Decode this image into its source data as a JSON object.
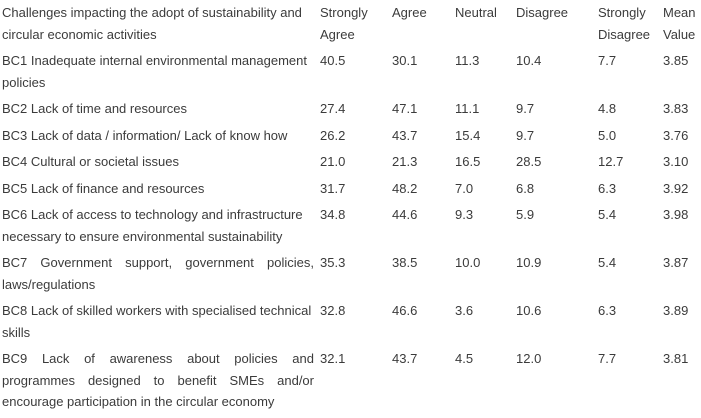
{
  "table": {
    "header": {
      "challenge_label": "Challenges impacting the adopt of sustainability and circular economic activities",
      "columns": [
        "Strongly Agree",
        "Agree",
        "Neutral",
        "Disagree",
        "Strongly Disagree",
        "Mean Value"
      ]
    },
    "rows": [
      {
        "challenge": "BC1 Inadequate internal environmental management policies",
        "strongly_agree": "40.5",
        "agree": "30.1",
        "neutral": "11.3",
        "disagree": "10.4",
        "strongly_disagree": "7.7",
        "mean_value": "3.85"
      },
      {
        "challenge": "BC2 Lack of time and resources",
        "strongly_agree": "27.4",
        "agree": "47.1",
        "neutral": "11.1",
        "disagree": "9.7",
        "strongly_disagree": "4.8",
        "mean_value": "3.83"
      },
      {
        "challenge": "BC3 Lack of data / information/ Lack of know how",
        "strongly_agree": "26.2",
        "agree": "43.7",
        "neutral": "15.4",
        "disagree": "9.7",
        "strongly_disagree": "5.0",
        "mean_value": "3.76"
      },
      {
        "challenge": "BC4 Cultural or societal issues",
        "strongly_agree": "21.0",
        "agree": "21.3",
        "neutral": "16.5",
        "disagree": "28.5",
        "strongly_disagree": "12.7",
        "mean_value": "3.10"
      },
      {
        "challenge": "BC5 Lack of finance and resources",
        "strongly_agree": "31.7",
        "agree": "48.2",
        "neutral": "7.0",
        "disagree": "6.8",
        "strongly_disagree": "6.3",
        "mean_value": "3.92"
      },
      {
        "challenge": "BC6 Lack of access to technology and infrastructure necessary to ensure environmental sustainability",
        "strongly_agree": "34.8",
        "agree": "44.6",
        "neutral": "9.3",
        "disagree": "5.9",
        "strongly_disagree": "5.4",
        "mean_value": "3.98"
      },
      {
        "challenge": "BC7 Government support, government policies, laws/regulations",
        "strongly_agree": "35.3",
        "agree": "38.5",
        "neutral": "10.0",
        "disagree": "10.9",
        "strongly_disagree": "5.4",
        "mean_value": "3.87"
      },
      {
        "challenge": "BC8 Lack of skilled workers with specialised technical skills",
        "strongly_agree": "32.8",
        "agree": "46.6",
        "neutral": "3.6",
        "disagree": "10.6",
        "strongly_disagree": "6.3",
        "mean_value": "3.89"
      },
      {
        "challenge": "BC9 Lack of awareness about policies and programmes designed to benefit SMEs and/or encourage participation in the circular economy",
        "strongly_agree": "32.1",
        "agree": "43.7",
        "neutral": "4.5",
        "disagree": "12.0",
        "strongly_disagree": "7.7",
        "mean_value": "3.81"
      }
    ]
  },
  "chart_data": {
    "type": "table",
    "title": "Challenges impacting the adopt of sustainability and circular economic activities",
    "columns": [
      "Challenge",
      "Strongly Agree",
      "Agree",
      "Neutral",
      "Disagree",
      "Strongly Disagree",
      "Mean Value"
    ],
    "rows": [
      [
        "BC1 Inadequate internal environmental management policies",
        40.5,
        30.1,
        11.3,
        10.4,
        7.7,
        3.85
      ],
      [
        "BC2 Lack of time and resources",
        27.4,
        47.1,
        11.1,
        9.7,
        4.8,
        3.83
      ],
      [
        "BC3 Lack of data / information/ Lack of know how",
        26.2,
        43.7,
        15.4,
        9.7,
        5.0,
        3.76
      ],
      [
        "BC4 Cultural or societal issues",
        21.0,
        21.3,
        16.5,
        28.5,
        12.7,
        3.1
      ],
      [
        "BC5 Lack of finance and resources",
        31.7,
        48.2,
        7.0,
        6.8,
        6.3,
        3.92
      ],
      [
        "BC6 Lack of access to technology and infrastructure necessary to ensure environmental sustainability",
        34.8,
        44.6,
        9.3,
        5.9,
        5.4,
        3.98
      ],
      [
        "BC7 Government support, government policies, laws/regulations",
        35.3,
        38.5,
        10.0,
        10.9,
        5.4,
        3.87
      ],
      [
        "BC8 Lack of skilled workers with specialised technical skills",
        32.8,
        46.6,
        3.6,
        10.6,
        6.3,
        3.89
      ],
      [
        "BC9 Lack of awareness about policies and programmes designed to benefit SMEs and/or encourage participation in the circular economy",
        32.1,
        43.7,
        4.5,
        12.0,
        7.7,
        3.81
      ]
    ]
  }
}
